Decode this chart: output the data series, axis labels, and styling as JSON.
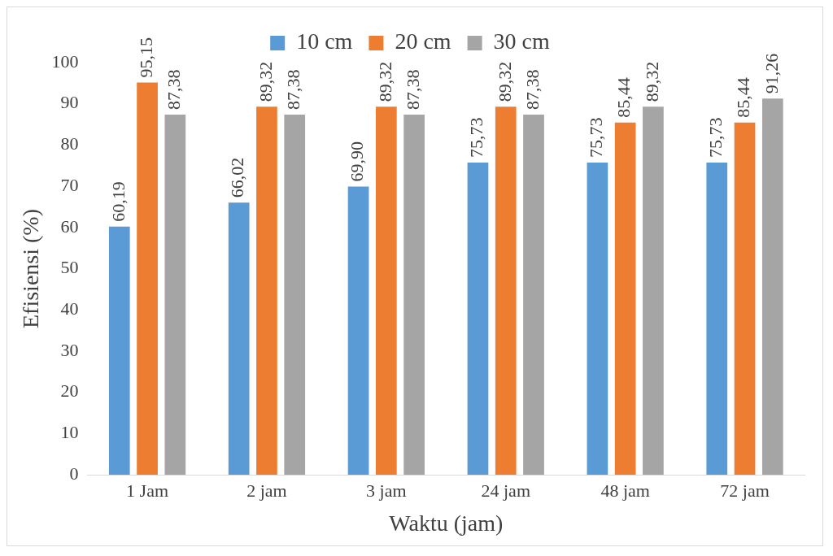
{
  "chart_data": {
    "type": "bar",
    "xlabel": "Waktu (jam)",
    "ylabel": "Efisiensi (%)",
    "categories": [
      "1 Jam",
      "2 jam",
      "3 jam",
      "24 jam",
      "48 jam",
      "72 jam"
    ],
    "series": [
      {
        "name": "10 cm",
        "color": "#5b9bd5",
        "values": [
          60.19,
          66.02,
          69.9,
          75.73,
          75.73,
          75.73
        ],
        "value_labels": [
          "60,19",
          "66,02",
          "69,90",
          "75,73",
          "75,73",
          "75,73"
        ]
      },
      {
        "name": "20 cm",
        "color": "#ed7d31",
        "values": [
          95.15,
          89.32,
          89.32,
          89.32,
          85.44,
          85.44
        ],
        "value_labels": [
          "95,15",
          "89,32",
          "89,32",
          "89,32",
          "85,44",
          "85,44"
        ]
      },
      {
        "name": "30 cm",
        "color": "#a5a5a5",
        "values": [
          87.38,
          87.38,
          87.38,
          87.38,
          89.32,
          91.26
        ],
        "value_labels": [
          "87,38",
          "87,38",
          "87,38",
          "87,38",
          "89,32",
          "91,26"
        ]
      }
    ],
    "ylim": [
      0,
      100
    ],
    "yticks": [
      0,
      10,
      20,
      30,
      40,
      50,
      60,
      70,
      80,
      90,
      100
    ],
    "grid": false,
    "legend": "top"
  }
}
